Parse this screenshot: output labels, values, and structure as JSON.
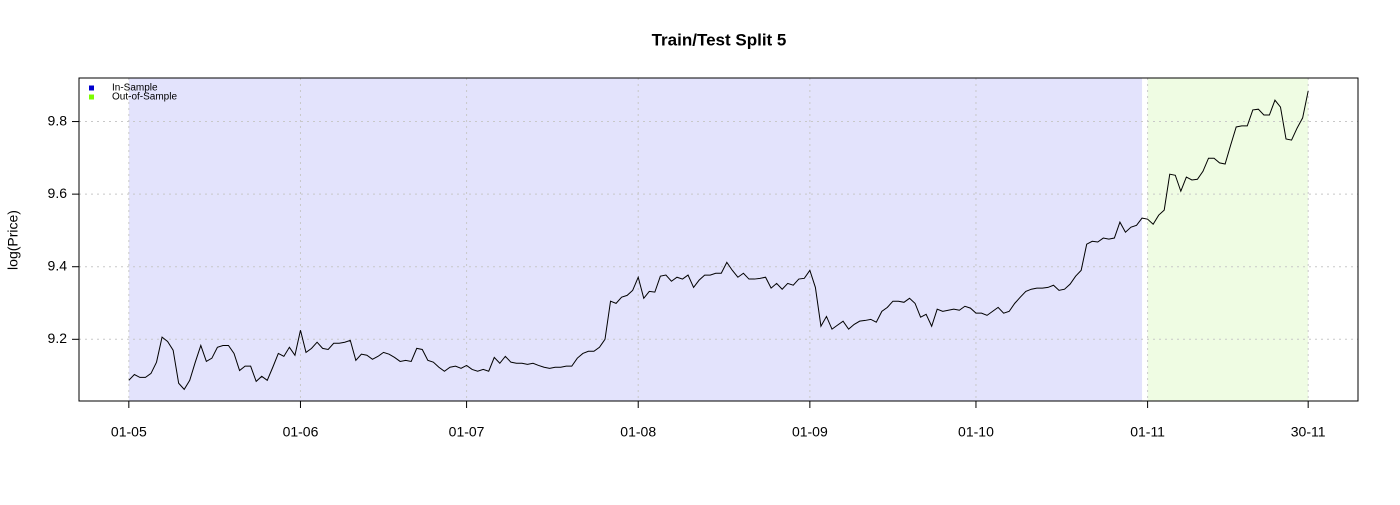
{
  "chart_data": {
    "type": "line",
    "title": "Train/Test Split 5",
    "y_label": "log(Price)",
    "x": [
      "01-05",
      "02-05",
      "03-05",
      "04-05",
      "05-05",
      "06-05",
      "07-05",
      "08-05",
      "09-05",
      "10-05",
      "11-05",
      "12-05",
      "13-05",
      "14-05",
      "15-05",
      "16-05",
      "17-05",
      "18-05",
      "19-05",
      "20-05",
      "21-05",
      "22-05",
      "23-05",
      "24-05",
      "25-05",
      "26-05",
      "27-05",
      "28-05",
      "29-05",
      "30-05",
      "31-05",
      "01-06",
      "02-06",
      "03-06",
      "04-06",
      "05-06",
      "06-06",
      "07-06",
      "08-06",
      "09-06",
      "10-06",
      "11-06",
      "12-06",
      "13-06",
      "14-06",
      "15-06",
      "16-06",
      "17-06",
      "18-06",
      "19-06",
      "20-06",
      "21-06",
      "22-06",
      "23-06",
      "24-06",
      "25-06",
      "26-06",
      "27-06",
      "28-06",
      "29-06",
      "30-06",
      "01-07",
      "02-07",
      "03-07",
      "04-07",
      "05-07",
      "06-07",
      "07-07",
      "08-07",
      "09-07",
      "10-07",
      "11-07",
      "12-07",
      "13-07",
      "14-07",
      "15-07",
      "16-07",
      "17-07",
      "18-07",
      "19-07",
      "20-07",
      "21-07",
      "22-07",
      "23-07",
      "24-07",
      "25-07",
      "26-07",
      "27-07",
      "28-07",
      "29-07",
      "30-07",
      "31-07",
      "01-08",
      "02-08",
      "03-08",
      "04-08",
      "05-08",
      "06-08",
      "07-08",
      "08-08",
      "09-08",
      "10-08",
      "11-08",
      "12-08",
      "13-08",
      "14-08",
      "15-08",
      "16-08",
      "17-08",
      "18-08",
      "19-08",
      "20-08",
      "21-08",
      "22-08",
      "23-08",
      "24-08",
      "25-08",
      "26-08",
      "27-08",
      "28-08",
      "29-08",
      "30-08",
      "31-08",
      "01-09",
      "02-09",
      "03-09",
      "04-09",
      "05-09",
      "06-09",
      "07-09",
      "08-09",
      "09-09",
      "10-09",
      "11-09",
      "12-09",
      "13-09",
      "14-09",
      "15-09",
      "16-09",
      "17-09",
      "18-09",
      "19-09",
      "20-09",
      "21-09",
      "22-09",
      "23-09",
      "24-09",
      "25-09",
      "26-09",
      "27-09",
      "28-09",
      "29-09",
      "30-09",
      "01-10",
      "02-10",
      "03-10",
      "04-10",
      "05-10",
      "06-10",
      "07-10",
      "08-10",
      "09-10",
      "10-10",
      "11-10",
      "12-10",
      "13-10",
      "14-10",
      "15-10",
      "16-10",
      "17-10",
      "18-10",
      "19-10",
      "20-10",
      "21-10",
      "22-10",
      "23-10",
      "24-10",
      "25-10",
      "26-10",
      "27-10",
      "28-10",
      "29-10",
      "30-10",
      "31-10",
      "01-11",
      "02-11",
      "03-11",
      "04-11",
      "05-11",
      "06-11",
      "07-11",
      "08-11",
      "09-11",
      "10-11",
      "11-11",
      "12-11",
      "13-11",
      "14-11",
      "15-11",
      "16-11",
      "17-11",
      "18-11",
      "19-11",
      "20-11",
      "21-11",
      "22-11",
      "23-11",
      "24-11",
      "25-11",
      "26-11",
      "27-11",
      "28-11",
      "29-11",
      "30-11"
    ],
    "series": [
      {
        "color": "#000000",
        "values": [
          9.087,
          9.103,
          9.095,
          9.095,
          9.106,
          9.137,
          9.206,
          9.194,
          9.17,
          9.079,
          9.062,
          9.087,
          9.137,
          9.183,
          9.139,
          9.148,
          9.178,
          9.183,
          9.183,
          9.161,
          9.114,
          9.126,
          9.126,
          9.084,
          9.098,
          9.087,
          9.123,
          9.161,
          9.153,
          9.178,
          9.156,
          9.225,
          9.164,
          9.175,
          9.192,
          9.175,
          9.172,
          9.189,
          9.189,
          9.192,
          9.197,
          9.142,
          9.159,
          9.156,
          9.145,
          9.153,
          9.164,
          9.159,
          9.15,
          9.139,
          9.142,
          9.139,
          9.175,
          9.172,
          9.142,
          9.137,
          9.123,
          9.112,
          9.123,
          9.126,
          9.12,
          9.128,
          9.117,
          9.112,
          9.117,
          9.112,
          9.15,
          9.134,
          9.153,
          9.137,
          9.134,
          9.134,
          9.131,
          9.134,
          9.128,
          9.123,
          9.12,
          9.123,
          9.123,
          9.126,
          9.126,
          9.148,
          9.161,
          9.167,
          9.167,
          9.178,
          9.2,
          9.305,
          9.299,
          9.316,
          9.321,
          9.335,
          9.371,
          9.313,
          9.332,
          9.33,
          9.374,
          9.377,
          9.36,
          9.371,
          9.366,
          9.377,
          9.343,
          9.363,
          9.377,
          9.377,
          9.382,
          9.382,
          9.412,
          9.39,
          9.371,
          9.382,
          9.366,
          9.366,
          9.368,
          9.371,
          9.341,
          9.354,
          9.338,
          9.354,
          9.349,
          9.366,
          9.368,
          9.39,
          9.343,
          9.236,
          9.263,
          9.228,
          9.239,
          9.25,
          9.228,
          9.241,
          9.25,
          9.252,
          9.255,
          9.247,
          9.277,
          9.288,
          9.305,
          9.305,
          9.302,
          9.313,
          9.299,
          9.261,
          9.269,
          9.236,
          9.283,
          9.277,
          9.28,
          9.283,
          9.28,
          9.291,
          9.286,
          9.272,
          9.272,
          9.266,
          9.277,
          9.288,
          9.272,
          9.277,
          9.299,
          9.316,
          9.332,
          9.338,
          9.341,
          9.341,
          9.343,
          9.349,
          9.335,
          9.338,
          9.352,
          9.374,
          9.39,
          9.462,
          9.47,
          9.468,
          9.479,
          9.476,
          9.479,
          9.523,
          9.495,
          9.509,
          9.514,
          9.534,
          9.531,
          9.517,
          9.542,
          9.556,
          9.655,
          9.652,
          9.608,
          9.647,
          9.639,
          9.641,
          9.663,
          9.699,
          9.699,
          9.686,
          9.683,
          9.735,
          9.785,
          9.788,
          9.788,
          9.832,
          9.834,
          9.818,
          9.818,
          9.859,
          9.84,
          9.752,
          9.749,
          9.782,
          9.81,
          9.884
        ]
      }
    ],
    "regions": [
      {
        "name": "In-Sample",
        "start": "01-05",
        "end": "31-10",
        "color": "#e3e3fc",
        "legend_color": "#0000cd"
      },
      {
        "name": "Out-of-Sample",
        "start": "01-11",
        "end": "30-11",
        "color": "#effce3",
        "legend_color": "#7cfc00"
      }
    ],
    "xlim": [
      "22-04",
      "09-12"
    ],
    "xticks": [
      "01-05",
      "01-06",
      "01-07",
      "01-08",
      "01-09",
      "01-10",
      "01-11",
      "30-11"
    ],
    "ylim": [
      9.03,
      9.92
    ],
    "yticks": [
      9.2,
      9.4,
      9.6,
      9.8
    ],
    "grid": true,
    "legend_position": "top-left"
  }
}
